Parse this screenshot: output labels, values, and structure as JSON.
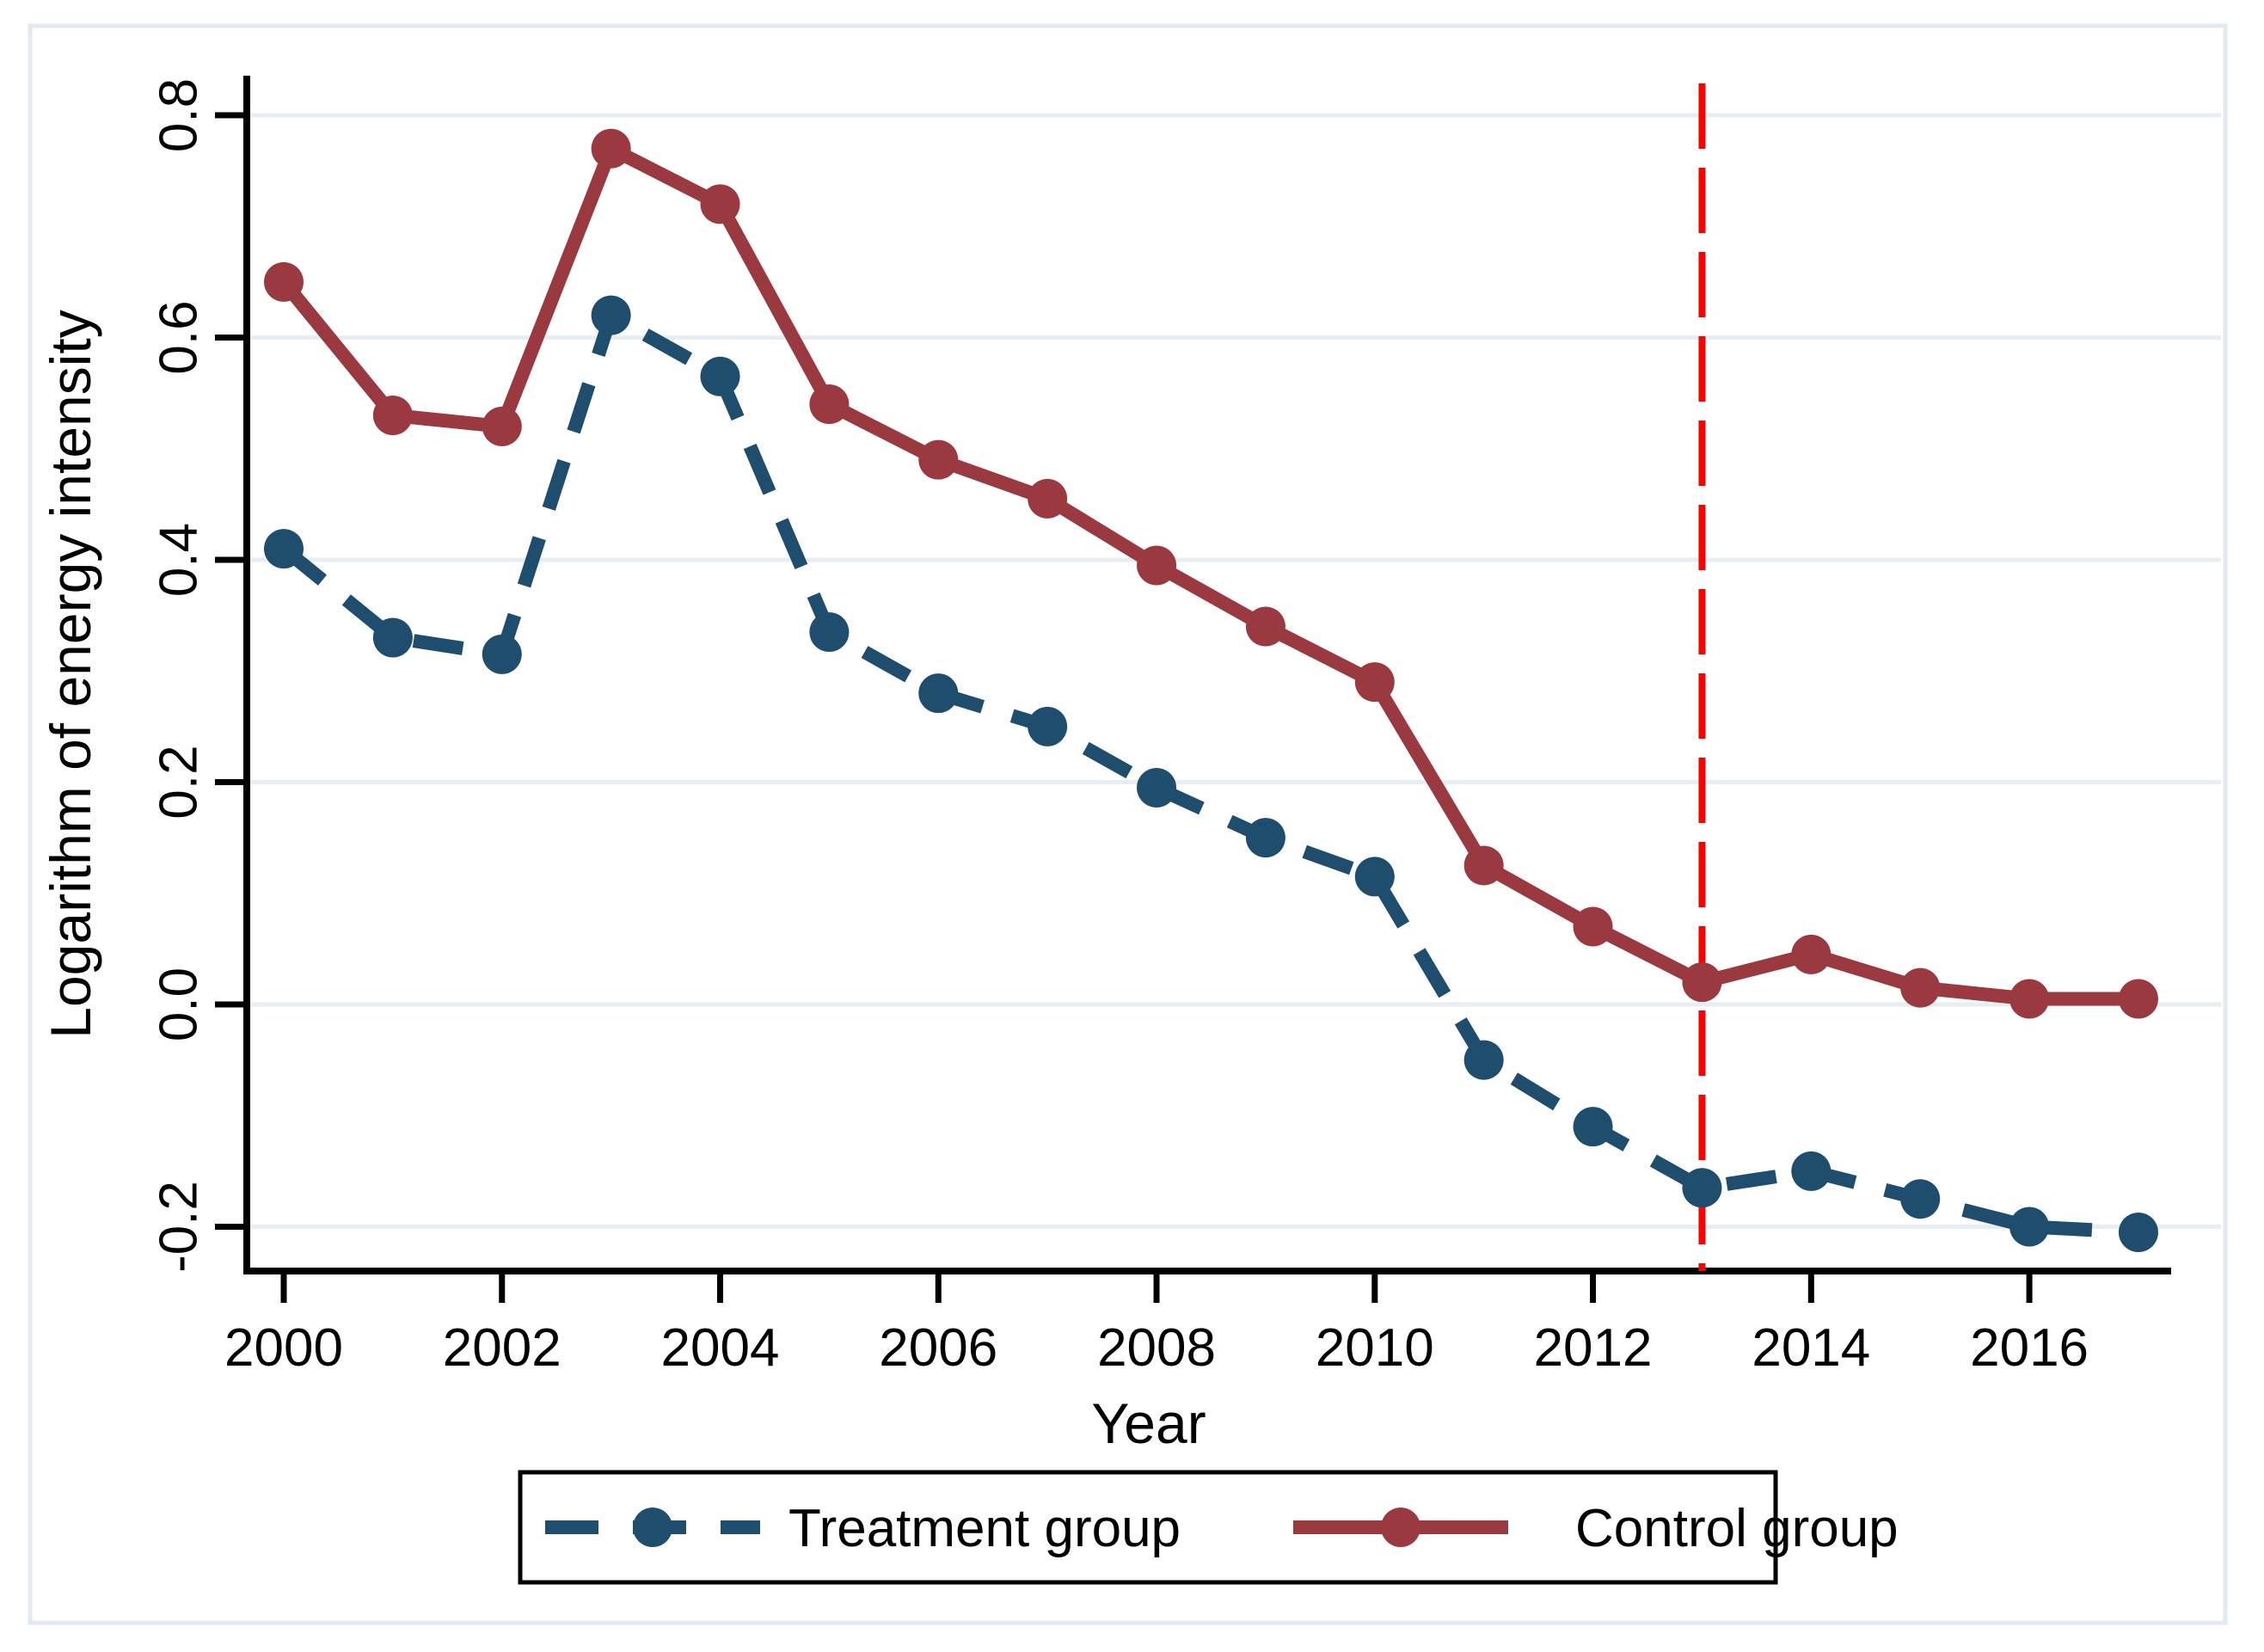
{
  "chart_data": {
    "type": "line",
    "title": "",
    "xlabel": "Year",
    "ylabel": "Logarithm of energy intensity",
    "x": [
      2000,
      2001,
      2002,
      2003,
      2004,
      2005,
      2006,
      2007,
      2008,
      2009,
      2010,
      2011,
      2012,
      2013,
      2014,
      2015,
      2016,
      2017
    ],
    "series": [
      {
        "name": "Treatment group",
        "color": "#1f4d6e",
        "line_style": "dashed",
        "marker": "circle",
        "values": [
          0.41,
          0.33,
          0.315,
          0.62,
          0.565,
          0.335,
          0.28,
          0.25,
          0.195,
          0.15,
          0.115,
          -0.05,
          -0.11,
          -0.165,
          -0.15,
          -0.175,
          -0.2,
          -0.205
        ]
      },
      {
        "name": "Control group",
        "color": "#9a3a40",
        "line_style": "solid",
        "marker": "circle",
        "values": [
          0.65,
          0.53,
          0.52,
          0.77,
          0.72,
          0.54,
          0.49,
          0.455,
          0.395,
          0.34,
          0.29,
          0.125,
          0.07,
          0.02,
          0.045,
          0.015,
          0.005,
          0.005
        ]
      }
    ],
    "reference_line": {
      "x": 2013,
      "color": "#ff0000",
      "style": "dashed",
      "orientation": "vertical"
    },
    "xlim": [
      1999.7,
      2017.3
    ],
    "ylim": [
      -0.24,
      0.84
    ],
    "xticks": [
      2000,
      2002,
      2004,
      2006,
      2008,
      2010,
      2012,
      2014,
      2016
    ],
    "xtick_labels": [
      "2000",
      "2002",
      "2004",
      "2006",
      "2008",
      "2010",
      "2012",
      "2014",
      "2016"
    ],
    "yticks": [
      0.8,
      0.6,
      0.4,
      0.2,
      0.0,
      -0.2
    ],
    "ytick_labels": [
      "0.8",
      "0.6",
      "0.4",
      "0.2",
      "0.0",
      "-0.2"
    ],
    "grid": "horizontal",
    "grid_color": "#e6edf3",
    "frame_border_color": "#e2eaf1",
    "axis_color": "#000000",
    "legend_position": "bottom"
  }
}
